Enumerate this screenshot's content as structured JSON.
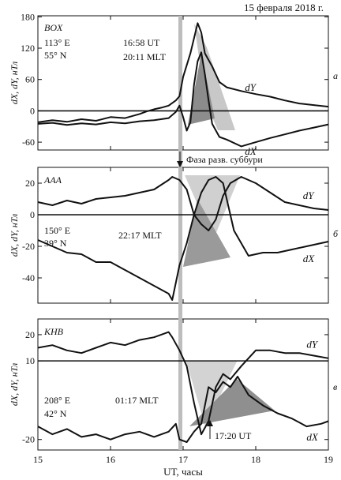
{
  "header": {
    "date_label": "15 февраля 2018 г."
  },
  "marker_label": "Фаза разв. суббури",
  "xlabel": "UT, часы",
  "chart_data": [
    {
      "type": "line",
      "station": "BOX",
      "coords": [
        "113° E",
        "55° N"
      ],
      "panel_letter": "а",
      "ylabel": "dX, dY, нТл",
      "annotation": [
        "16:58 UT",
        "20:11 MLT"
      ],
      "xlim": [
        15,
        19
      ],
      "ylim": [
        -75,
        182
      ],
      "yticks": [
        -60,
        0,
        60,
        120,
        180
      ],
      "zero_line": 0,
      "series": [
        {
          "name": "dY",
          "x": [
            15.0,
            15.2,
            15.4,
            15.6,
            15.8,
            16.0,
            16.2,
            16.4,
            16.5,
            16.6,
            16.7,
            16.8,
            16.9,
            16.95,
            17.0,
            17.1,
            17.2,
            17.25,
            17.3,
            17.4,
            17.5,
            17.6,
            17.8,
            18.0,
            18.2,
            18.4,
            18.6,
            18.8,
            19.0
          ],
          "y": [
            -22,
            -18,
            -21,
            -16,
            -19,
            -12,
            -14,
            -6,
            -1,
            3,
            6,
            10,
            20,
            28,
            65,
            110,
            168,
            150,
            110,
            85,
            55,
            45,
            38,
            32,
            27,
            20,
            14,
            11,
            8
          ]
        },
        {
          "name": "dX",
          "x": [
            15.0,
            15.2,
            15.4,
            15.6,
            15.8,
            16.0,
            16.2,
            16.4,
            16.6,
            16.8,
            16.9,
            16.95,
            17.0,
            17.05,
            17.1,
            17.15,
            17.2,
            17.25,
            17.3,
            17.35,
            17.4,
            17.5,
            17.6,
            17.8,
            18.0,
            18.2,
            18.4,
            18.6,
            18.8,
            19.0
          ],
          "y": [
            -25,
            -23,
            -27,
            -24,
            -26,
            -22,
            -24,
            -20,
            -18,
            -14,
            -2,
            10,
            -12,
            -38,
            -22,
            50,
            95,
            112,
            70,
            20,
            -25,
            -50,
            -55,
            -68,
            -60,
            -52,
            -45,
            -38,
            -32,
            -26
          ]
        }
      ]
    },
    {
      "type": "line",
      "station": "AAA",
      "coords": [
        "150° E",
        "39° N"
      ],
      "panel_letter": "б",
      "ylabel": "dX, dY, нТл",
      "annotation": [
        "22:17 MLT"
      ],
      "xlim": [
        15,
        19
      ],
      "ylim": [
        -56,
        30
      ],
      "yticks": [
        -40,
        -20,
        0,
        20
      ],
      "zero_line": 0,
      "series": [
        {
          "name": "dY",
          "x": [
            15.0,
            15.2,
            15.4,
            15.6,
            15.8,
            16.0,
            16.2,
            16.4,
            16.6,
            16.8,
            16.85,
            16.95,
            17.05,
            17.15,
            17.25,
            17.35,
            17.45,
            17.55,
            17.65,
            17.8,
            18.0,
            18.2,
            18.4,
            18.6,
            18.8,
            19.0
          ],
          "y": [
            8,
            6,
            9,
            7,
            10,
            11,
            12,
            14,
            16,
            22,
            24,
            22,
            16,
            0,
            -6,
            -10,
            -3,
            12,
            20,
            24,
            20,
            14,
            8,
            6,
            4,
            3
          ]
        },
        {
          "name": "dX",
          "x": [
            15.0,
            15.2,
            15.4,
            15.6,
            15.8,
            16.0,
            16.2,
            16.4,
            16.6,
            16.8,
            16.85,
            16.95,
            17.05,
            17.15,
            17.25,
            17.35,
            17.45,
            17.55,
            17.7,
            17.9,
            18.1,
            18.3,
            18.5,
            18.7,
            18.9,
            19.0
          ],
          "y": [
            -16,
            -20,
            -24,
            -25,
            -30,
            -30,
            -35,
            -40,
            -45,
            -50,
            -54,
            -32,
            -18,
            0,
            14,
            22,
            24,
            20,
            -10,
            -26,
            -24,
            -24,
            -22,
            -20,
            -18,
            -17
          ]
        }
      ]
    },
    {
      "type": "line",
      "station": "KHB",
      "coords": [
        "208° E",
        "42° N"
      ],
      "panel_letter": "в",
      "ylabel": "dX, dY, нТл",
      "annotation": [
        "01:17 MLT",
        "17:20 UT"
      ],
      "xlim": [
        15,
        19
      ],
      "ylim": [
        -24,
        26
      ],
      "yticks": [
        -20,
        10,
        20
      ],
      "zero_line": 10,
      "series": [
        {
          "name": "dY",
          "x": [
            15.0,
            15.2,
            15.4,
            15.6,
            15.8,
            16.0,
            16.2,
            16.4,
            16.6,
            16.8,
            16.85,
            16.95,
            17.05,
            17.15,
            17.25,
            17.35,
            17.45,
            17.55,
            17.65,
            17.8,
            18.0,
            18.2,
            18.4,
            18.6,
            18.8,
            19.0
          ],
          "y": [
            15,
            16,
            14,
            13,
            15,
            17,
            16,
            18,
            19,
            21,
            19,
            14,
            8,
            -6,
            -18,
            -13,
            0,
            5,
            3,
            8,
            14,
            14,
            13,
            13,
            12,
            11
          ]
        },
        {
          "name": "dX",
          "x": [
            15.0,
            15.2,
            15.4,
            15.6,
            15.8,
            16.0,
            16.2,
            16.4,
            16.6,
            16.8,
            16.9,
            16.95,
            17.05,
            17.15,
            17.25,
            17.35,
            17.45,
            17.55,
            17.65,
            17.75,
            17.9,
            18.1,
            18.3,
            18.5,
            18.7,
            18.9,
            19.0
          ],
          "y": [
            -15,
            -18,
            -16,
            -19,
            -18,
            -20,
            -18,
            -17,
            -19,
            -17,
            -14,
            -20,
            -21,
            -17,
            -14,
            0,
            -2,
            2,
            0,
            4,
            -3,
            -7,
            -10,
            -12,
            -15,
            -14,
            -13
          ]
        }
      ]
    }
  ]
}
